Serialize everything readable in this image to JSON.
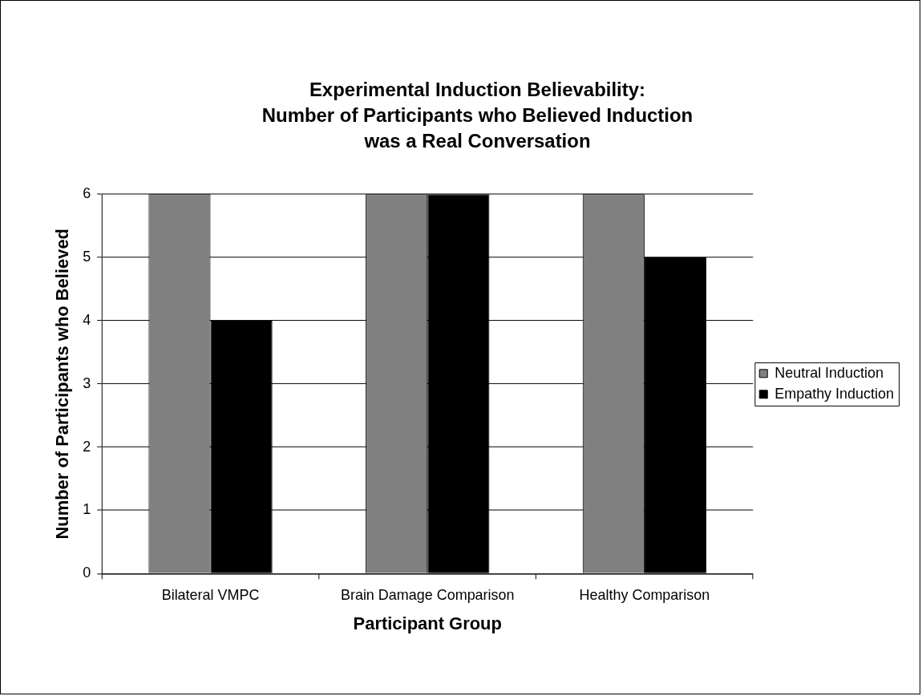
{
  "chart_data": {
    "type": "bar",
    "title": "Experimental Induction Believability:\nNumber of Participants who Believed Induction\nwas a Real Conversation",
    "xlabel": "Participant Group",
    "ylabel": "Number of Participants who Believed",
    "categories": [
      "Bilateral VMPC",
      "Brain Damage Comparison",
      "Healthy Comparison"
    ],
    "series": [
      {
        "name": "Neutral Induction",
        "color": "#808080",
        "values": [
          6,
          6,
          6
        ]
      },
      {
        "name": "Empathy Induction",
        "color": "#000000",
        "values": [
          4,
          6,
          5
        ]
      }
    ],
    "ylim": [
      0,
      6
    ],
    "yticks": [
      0,
      1,
      2,
      3,
      4,
      5,
      6
    ],
    "grid": "y",
    "legend": "right"
  }
}
